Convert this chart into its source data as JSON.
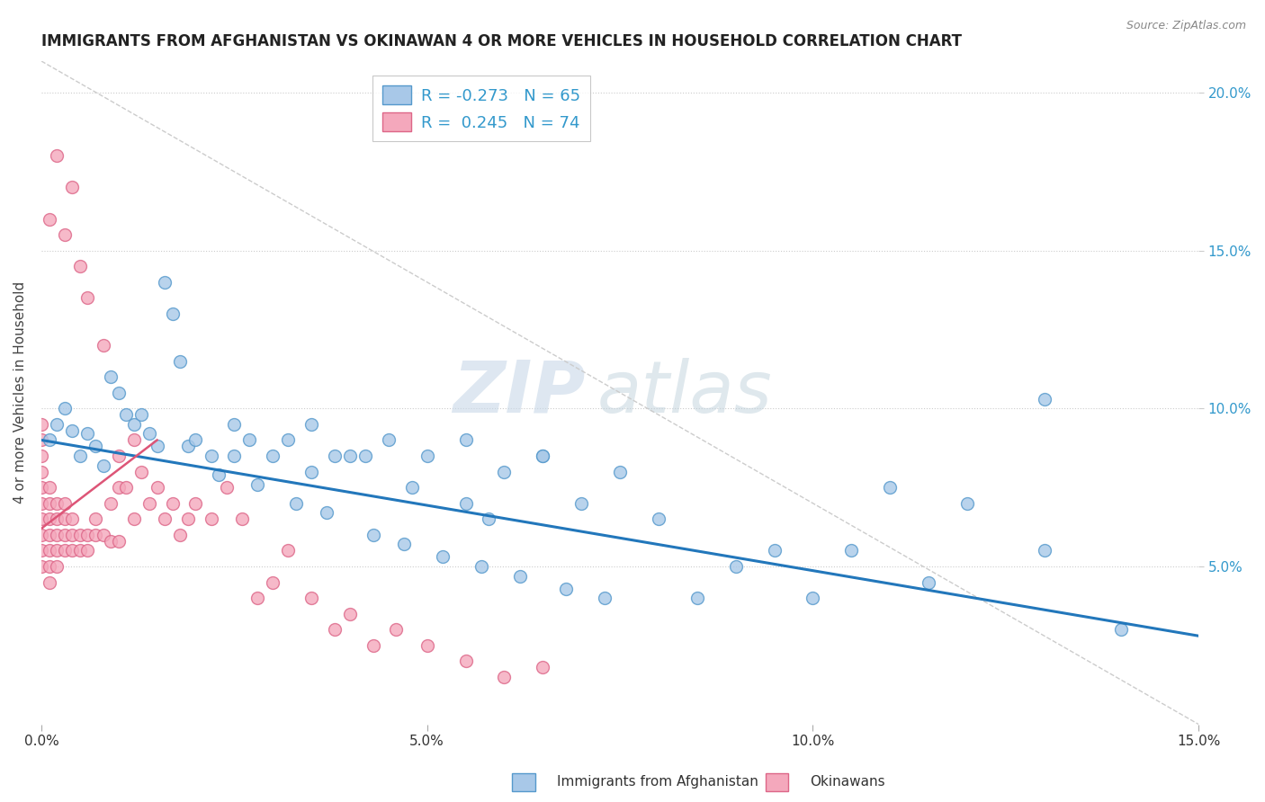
{
  "title": "IMMIGRANTS FROM AFGHANISTAN VS OKINAWAN 4 OR MORE VEHICLES IN HOUSEHOLD CORRELATION CHART",
  "source": "Source: ZipAtlas.com",
  "ylabel": "4 or more Vehicles in Household",
  "legend_label1": "Immigrants from Afghanistan",
  "legend_label2": "Okinawans",
  "R1": -0.273,
  "N1": 65,
  "R2": 0.245,
  "N2": 74,
  "color1": "#a8c8e8",
  "color2": "#f4a8bc",
  "color1_edge": "#5599cc",
  "color2_edge": "#dd6688",
  "xlim": [
    0.0,
    0.15
  ],
  "ylim": [
    0.0,
    0.21
  ],
  "watermark_zip": "ZIP",
  "watermark_atlas": "atlas",
  "blue_scatter_x": [
    0.001,
    0.002,
    0.003,
    0.004,
    0.005,
    0.006,
    0.007,
    0.008,
    0.009,
    0.01,
    0.011,
    0.012,
    0.013,
    0.014,
    0.015,
    0.016,
    0.017,
    0.018,
    0.019,
    0.02,
    0.022,
    0.023,
    0.025,
    0.027,
    0.028,
    0.03,
    0.032,
    0.033,
    0.035,
    0.037,
    0.038,
    0.04,
    0.042,
    0.043,
    0.045,
    0.047,
    0.048,
    0.05,
    0.052,
    0.055,
    0.057,
    0.058,
    0.06,
    0.062,
    0.065,
    0.068,
    0.07,
    0.073,
    0.075,
    0.08,
    0.085,
    0.09,
    0.095,
    0.1,
    0.105,
    0.11,
    0.115,
    0.12,
    0.13,
    0.14,
    0.055,
    0.065,
    0.035,
    0.025,
    0.13
  ],
  "blue_scatter_y": [
    0.09,
    0.095,
    0.1,
    0.093,
    0.085,
    0.092,
    0.088,
    0.082,
    0.11,
    0.105,
    0.098,
    0.095,
    0.098,
    0.092,
    0.088,
    0.14,
    0.13,
    0.115,
    0.088,
    0.09,
    0.085,
    0.079,
    0.095,
    0.09,
    0.076,
    0.085,
    0.09,
    0.07,
    0.08,
    0.067,
    0.085,
    0.085,
    0.085,
    0.06,
    0.09,
    0.057,
    0.075,
    0.085,
    0.053,
    0.07,
    0.05,
    0.065,
    0.08,
    0.047,
    0.085,
    0.043,
    0.07,
    0.04,
    0.08,
    0.065,
    0.04,
    0.05,
    0.055,
    0.04,
    0.055,
    0.075,
    0.045,
    0.07,
    0.055,
    0.03,
    0.09,
    0.085,
    0.095,
    0.085,
    0.103
  ],
  "pink_scatter_x": [
    0.0,
    0.0,
    0.0,
    0.0,
    0.0,
    0.0,
    0.0,
    0.0,
    0.0,
    0.0,
    0.001,
    0.001,
    0.001,
    0.001,
    0.001,
    0.001,
    0.001,
    0.001,
    0.002,
    0.002,
    0.002,
    0.002,
    0.002,
    0.002,
    0.003,
    0.003,
    0.003,
    0.003,
    0.003,
    0.004,
    0.004,
    0.004,
    0.004,
    0.005,
    0.005,
    0.005,
    0.006,
    0.006,
    0.006,
    0.007,
    0.007,
    0.008,
    0.008,
    0.009,
    0.009,
    0.01,
    0.01,
    0.01,
    0.011,
    0.012,
    0.012,
    0.013,
    0.014,
    0.015,
    0.016,
    0.017,
    0.018,
    0.019,
    0.02,
    0.022,
    0.024,
    0.026,
    0.028,
    0.03,
    0.032,
    0.035,
    0.038,
    0.04,
    0.043,
    0.046,
    0.05,
    0.055,
    0.06,
    0.065
  ],
  "pink_scatter_y": [
    0.055,
    0.06,
    0.065,
    0.07,
    0.075,
    0.08,
    0.085,
    0.09,
    0.095,
    0.05,
    0.05,
    0.055,
    0.06,
    0.065,
    0.07,
    0.075,
    0.16,
    0.045,
    0.05,
    0.055,
    0.06,
    0.065,
    0.07,
    0.18,
    0.055,
    0.06,
    0.065,
    0.07,
    0.155,
    0.055,
    0.06,
    0.065,
    0.17,
    0.055,
    0.06,
    0.145,
    0.055,
    0.06,
    0.135,
    0.06,
    0.065,
    0.06,
    0.12,
    0.058,
    0.07,
    0.058,
    0.075,
    0.085,
    0.075,
    0.065,
    0.09,
    0.08,
    0.07,
    0.075,
    0.065,
    0.07,
    0.06,
    0.065,
    0.07,
    0.065,
    0.075,
    0.065,
    0.04,
    0.045,
    0.055,
    0.04,
    0.03,
    0.035,
    0.025,
    0.03,
    0.025,
    0.02,
    0.015,
    0.018
  ]
}
